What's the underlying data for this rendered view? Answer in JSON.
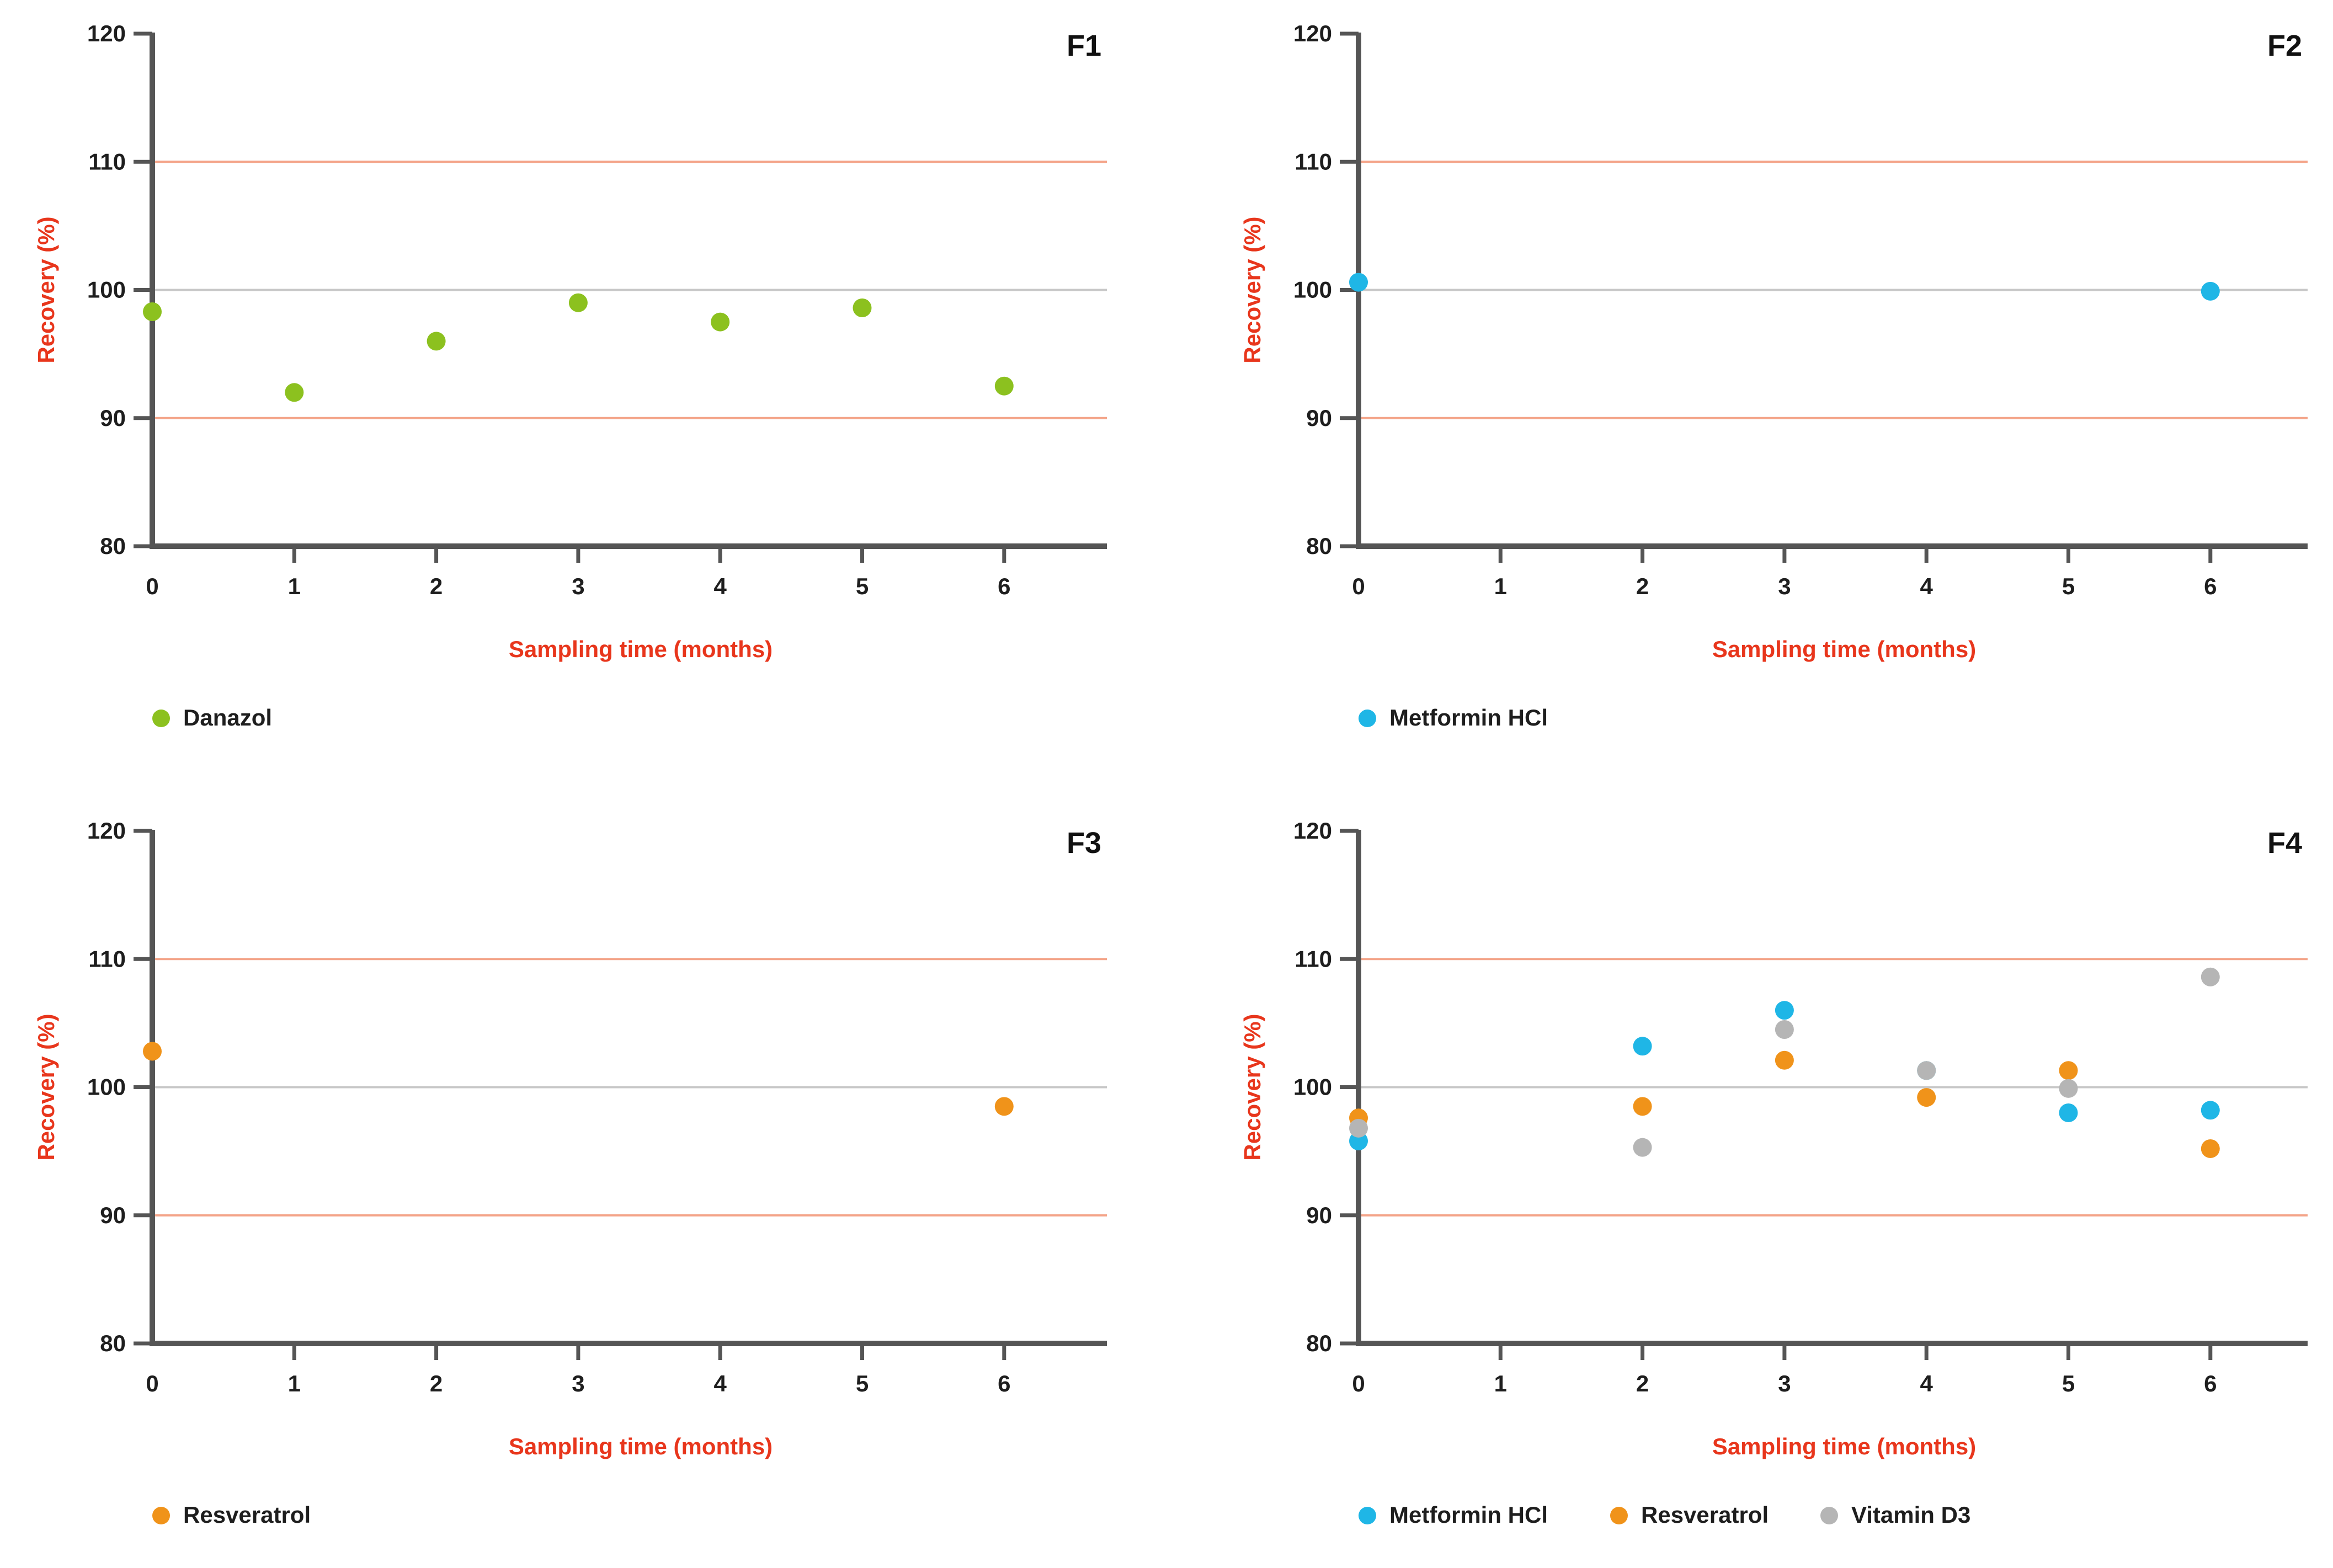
{
  "chart_data": [
    {
      "type": "scatter",
      "title": "F1",
      "xlabel": "Sampling time (months)",
      "ylabel": "Recovery (%)",
      "xlim": [
        0,
        6.7
      ],
      "ylim": [
        80,
        120
      ],
      "x_ticks": [
        0,
        1,
        2,
        3,
        4,
        5,
        6
      ],
      "y_ticks": [
        80,
        90,
        100,
        110,
        120
      ],
      "reference_lines": [
        {
          "y": 90,
          "color": "#f4a58a"
        },
        {
          "y": 100,
          "color": "#c8c8c8"
        },
        {
          "y": 110,
          "color": "#f4a58a"
        }
      ],
      "legend": "bottom",
      "series": [
        {
          "name": "Danazol",
          "color": "#8cc11f",
          "points": [
            [
              0,
              98.3
            ],
            [
              1,
              92.0
            ],
            [
              2,
              96.0
            ],
            [
              3,
              99.0
            ],
            [
              4,
              97.5
            ],
            [
              5,
              98.6
            ],
            [
              6,
              92.5
            ]
          ]
        }
      ]
    },
    {
      "type": "scatter",
      "title": "F2",
      "xlabel": "Sampling time (months)",
      "ylabel": "Recovery (%)",
      "xlim": [
        0,
        6.7
      ],
      "ylim": [
        80,
        120
      ],
      "x_ticks": [
        0,
        1,
        2,
        3,
        4,
        5,
        6
      ],
      "y_ticks": [
        80,
        90,
        100,
        110,
        120
      ],
      "reference_lines": [
        {
          "y": 90,
          "color": "#f4a58a"
        },
        {
          "y": 100,
          "color": "#c8c8c8"
        },
        {
          "y": 110,
          "color": "#f4a58a"
        }
      ],
      "legend": "bottom",
      "series": [
        {
          "name": "Metformin HCl",
          "color": "#1fb6e6",
          "points": [
            [
              0,
              100.6
            ],
            [
              6,
              99.9
            ]
          ]
        }
      ]
    },
    {
      "type": "scatter",
      "title": "F3",
      "xlabel": "Sampling time (months)",
      "ylabel": "Recovery (%)",
      "xlim": [
        0,
        6.7
      ],
      "ylim": [
        80,
        120
      ],
      "x_ticks": [
        0,
        1,
        2,
        3,
        4,
        5,
        6
      ],
      "y_ticks": [
        80,
        90,
        100,
        110,
        120
      ],
      "reference_lines": [
        {
          "y": 90,
          "color": "#f4a58a"
        },
        {
          "y": 100,
          "color": "#c8c8c8"
        },
        {
          "y": 110,
          "color": "#f4a58a"
        }
      ],
      "legend": "bottom",
      "series": [
        {
          "name": "Resveratrol",
          "color": "#f0931a",
          "points": [
            [
              0,
              102.8
            ],
            [
              6,
              98.5
            ]
          ]
        }
      ]
    },
    {
      "type": "scatter",
      "title": "F4",
      "xlabel": "Sampling time (months)",
      "ylabel": "Recovery (%)",
      "xlim": [
        0,
        6.7
      ],
      "ylim": [
        80,
        120
      ],
      "x_ticks": [
        0,
        1,
        2,
        3,
        4,
        5,
        6
      ],
      "y_ticks": [
        80,
        90,
        100,
        110,
        120
      ],
      "reference_lines": [
        {
          "y": 90,
          "color": "#f4a58a"
        },
        {
          "y": 100,
          "color": "#c8c8c8"
        },
        {
          "y": 110,
          "color": "#f4a58a"
        }
      ],
      "legend": "bottom",
      "series": [
        {
          "name": "Metformin HCl",
          "color": "#1fb6e6",
          "points": [
            [
              0,
              95.8
            ],
            [
              2,
              103.2
            ],
            [
              3,
              106.0
            ],
            [
              4,
              101.3
            ],
            [
              5,
              98.0
            ],
            [
              6,
              98.2
            ]
          ]
        },
        {
          "name": "Resveratrol",
          "color": "#f0931a",
          "points": [
            [
              0,
              97.6
            ],
            [
              2,
              98.5
            ],
            [
              3,
              102.1
            ],
            [
              4,
              99.2
            ],
            [
              5,
              101.3
            ],
            [
              6,
              95.2
            ]
          ]
        },
        {
          "name": "Vitamin D3",
          "color": "#b5b5b5",
          "points": [
            [
              0,
              96.8
            ],
            [
              2,
              95.3
            ],
            [
              3,
              104.5
            ],
            [
              4,
              101.3
            ],
            [
              5,
              99.9
            ],
            [
              6,
              108.6
            ]
          ]
        }
      ]
    }
  ],
  "colors": {
    "axis": "#555555",
    "tick_text": "#1e1e1e",
    "axis_label": "#e8361c"
  }
}
